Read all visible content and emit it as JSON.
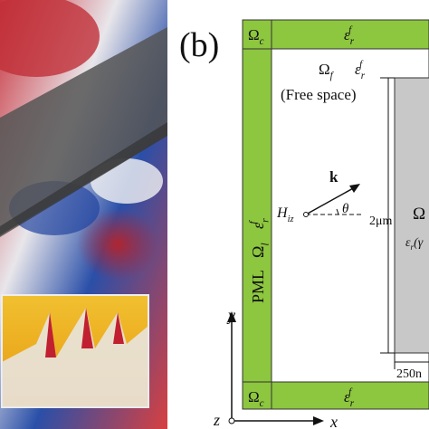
{
  "panel_label": "(b)",
  "top_band": {
    "region": {
      "symbol": "Ω",
      "sub": "c"
    },
    "permittivity": {
      "symbol": "ε",
      "sub": "r",
      "sup": "f"
    }
  },
  "bottom_band": {
    "region": {
      "symbol": "Ω",
      "sub": "c"
    },
    "permittivity": {
      "symbol": "ε",
      "sub": "r",
      "sup": "f"
    }
  },
  "free_space": {
    "region": {
      "symbol": "Ω",
      "sub": "f"
    },
    "permittivity": {
      "symbol": "ε",
      "sub": "r",
      "sup": "f"
    },
    "caption": "(Free space)"
  },
  "pml": {
    "prefix": "PML",
    "region": {
      "symbol": "Ω",
      "sub": "l"
    },
    "permittivity": {
      "symbol": "ε",
      "sub": "r",
      "sup": "f"
    }
  },
  "wave": {
    "vector": "k",
    "source": {
      "symbol": "H",
      "sub": "iz"
    },
    "angle": "θ"
  },
  "height_label": "2μm",
  "width_label": "250n",
  "scatterer": {
    "region": {
      "symbol": "Ω"
    },
    "permittivity": {
      "symbol": "ε",
      "sub": "r",
      "rest": "(γ"
    }
  },
  "axes": {
    "y": "y",
    "x": "x",
    "z": "z"
  }
}
